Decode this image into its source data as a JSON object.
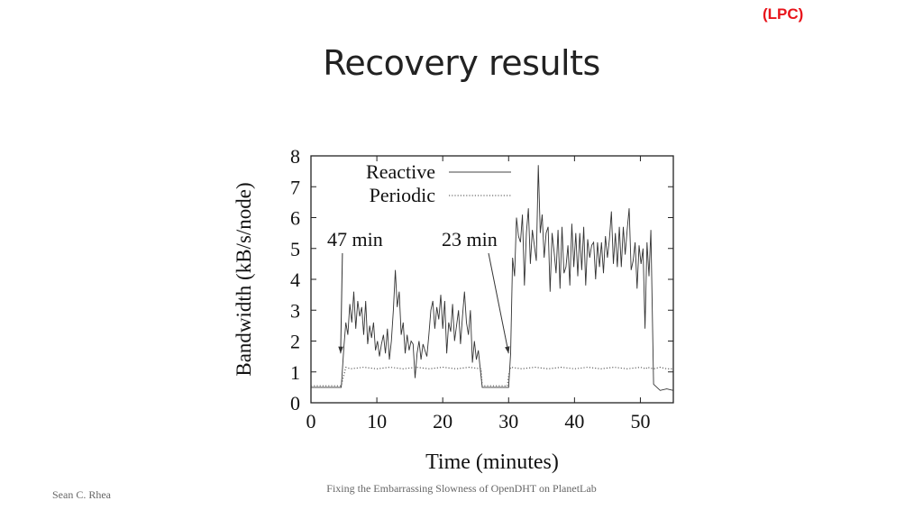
{
  "header": {
    "tag": "(LPC)",
    "title": "Recovery results"
  },
  "footer": {
    "author": "Sean C. Rhea",
    "talk": "Fixing the Embarrassing Slowness of OpenDHT on PlanetLab"
  },
  "chart_data": {
    "type": "line",
    "title": "",
    "xlabel": "Time (minutes)",
    "ylabel": "Bandwidth (kB/s/node)",
    "xlim": [
      0,
      55
    ],
    "ylim": [
      0,
      8
    ],
    "xticks": [
      0,
      10,
      20,
      30,
      40,
      50
    ],
    "yticks": [
      0,
      1,
      2,
      3,
      4,
      5,
      6,
      7,
      8
    ],
    "grid": false,
    "legend_position": "top-left",
    "annotations": [
      {
        "text": "47 min",
        "x": 4.5,
        "y": 1.6
      },
      {
        "text": "23 min",
        "x": 30.0,
        "y": 1.6
      }
    ],
    "series": [
      {
        "name": "Reactive",
        "style": "solid",
        "x": [
          0,
          1,
          2,
          3,
          4,
          4.6,
          5,
          5.3,
          5.6,
          5.9,
          6.2,
          6.5,
          6.8,
          7.1,
          7.4,
          7.7,
          8,
          8.3,
          8.6,
          8.9,
          9.2,
          9.5,
          9.8,
          10.1,
          10.4,
          10.7,
          11,
          11.3,
          11.6,
          11.9,
          12.2,
          12.5,
          12.8,
          13.1,
          13.4,
          13.7,
          14,
          14.3,
          14.6,
          14.9,
          15.2,
          15.5,
          15.8,
          16.1,
          16.4,
          16.7,
          17,
          17.3,
          17.6,
          17.9,
          18.2,
          18.5,
          18.8,
          19.1,
          19.4,
          19.7,
          20,
          20.3,
          20.6,
          20.9,
          21.2,
          21.5,
          21.8,
          22.1,
          22.4,
          22.7,
          23,
          23.3,
          23.6,
          23.9,
          24.2,
          24.5,
          24.8,
          25.1,
          25.4,
          25.7,
          26,
          27,
          28,
          29,
          30,
          30.3,
          30.6,
          30.9,
          31.2,
          31.5,
          31.8,
          32.1,
          32.4,
          32.7,
          33,
          33.3,
          33.6,
          33.9,
          34.2,
          34.5,
          34.8,
          35.1,
          35.4,
          35.7,
          36,
          36.3,
          36.6,
          36.9,
          37.2,
          37.5,
          37.8,
          38.1,
          38.4,
          38.7,
          39,
          39.3,
          39.6,
          39.9,
          40.2,
          40.5,
          40.8,
          41.1,
          41.4,
          41.7,
          42,
          42.3,
          42.6,
          42.9,
          43.2,
          43.5,
          43.8,
          44.1,
          44.4,
          44.7,
          45,
          45.3,
          45.6,
          45.9,
          46.2,
          46.5,
          46.8,
          47.1,
          47.4,
          47.7,
          48,
          48.3,
          48.6,
          48.9,
          49.2,
          49.5,
          49.8,
          50.1,
          50.4,
          50.7,
          51,
          51.3,
          51.6,
          52,
          53,
          54,
          55
        ],
        "values": [
          0.5,
          0.5,
          0.5,
          0.5,
          0.5,
          0.5,
          1.8,
          2.6,
          2.2,
          3.2,
          2.6,
          3.6,
          2.4,
          3.3,
          2.8,
          3.1,
          2.2,
          3.3,
          1.9,
          2.5,
          2.1,
          2.6,
          1.7,
          2.0,
          1.5,
          1.9,
          2.2,
          1.6,
          2.4,
          1.4,
          2.0,
          3.0,
          4.3,
          3.1,
          3.6,
          2.2,
          2.6,
          1.6,
          2.2,
          1.7,
          2.0,
          1.9,
          0.8,
          1.6,
          2.0,
          1.4,
          1.9,
          1.7,
          1.5,
          2.2,
          3.0,
          3.3,
          2.4,
          3.1,
          2.7,
          3.5,
          2.4,
          3.3,
          1.6,
          2.6,
          2.3,
          3.2,
          2.0,
          2.5,
          3.0,
          1.9,
          2.8,
          3.6,
          2.6,
          2.2,
          3.0,
          1.3,
          2.0,
          1.4,
          1.7,
          1.1,
          0.5,
          0.5,
          0.5,
          0.5,
          0.5,
          1.6,
          4.7,
          4.1,
          6.0,
          5.4,
          5.2,
          6.1,
          3.8,
          5.5,
          6.3,
          4.5,
          5.6,
          5.1,
          4.6,
          7.7,
          5.5,
          6.1,
          4.7,
          5.5,
          5.7,
          3.6,
          5.5,
          4.9,
          4.2,
          5.6,
          3.7,
          5.7,
          4.2,
          4.4,
          5.1,
          3.8,
          5.8,
          4.4,
          5.5,
          4.1,
          5.5,
          4.3,
          5.7,
          3.8,
          5.3,
          4.7,
          5.1,
          5.2,
          4.0,
          5.2,
          4.4,
          5.2,
          4.2,
          5.4,
          4.7,
          5.3,
          6.2,
          4.5,
          5.5,
          4.4,
          5.7,
          4.4,
          5.7,
          4.8,
          5.6,
          6.3,
          4.3,
          4.6,
          5.2,
          3.7,
          5.1,
          4.5,
          5.0,
          2.4,
          5.2,
          4.1,
          5.6,
          0.6,
          0.4,
          0.45,
          0.4
        ]
      },
      {
        "name": "Periodic",
        "style": "dotted",
        "x": [
          0,
          1,
          2,
          3,
          4,
          4.6,
          5,
          5.3,
          6,
          8,
          10,
          12,
          14,
          16,
          18,
          20,
          22,
          24,
          25.8,
          26,
          27,
          28,
          29,
          29.8,
          30,
          30.3,
          32,
          34,
          36,
          38,
          40,
          42,
          44,
          46,
          48,
          50,
          50.9,
          51,
          52,
          53,
          54,
          55
        ],
        "values": [
          0.55,
          0.55,
          0.55,
          0.55,
          0.55,
          0.55,
          0.9,
          1.15,
          1.1,
          1.15,
          1.1,
          1.15,
          1.1,
          1.15,
          1.1,
          1.15,
          1.1,
          1.15,
          1.1,
          0.55,
          0.55,
          0.55,
          0.55,
          0.55,
          0.9,
          1.15,
          1.1,
          1.15,
          1.1,
          1.15,
          1.1,
          1.15,
          1.1,
          1.15,
          1.1,
          1.15,
          1.1,
          1.15,
          1.1,
          1.15,
          1.1,
          1.1
        ]
      }
    ]
  }
}
